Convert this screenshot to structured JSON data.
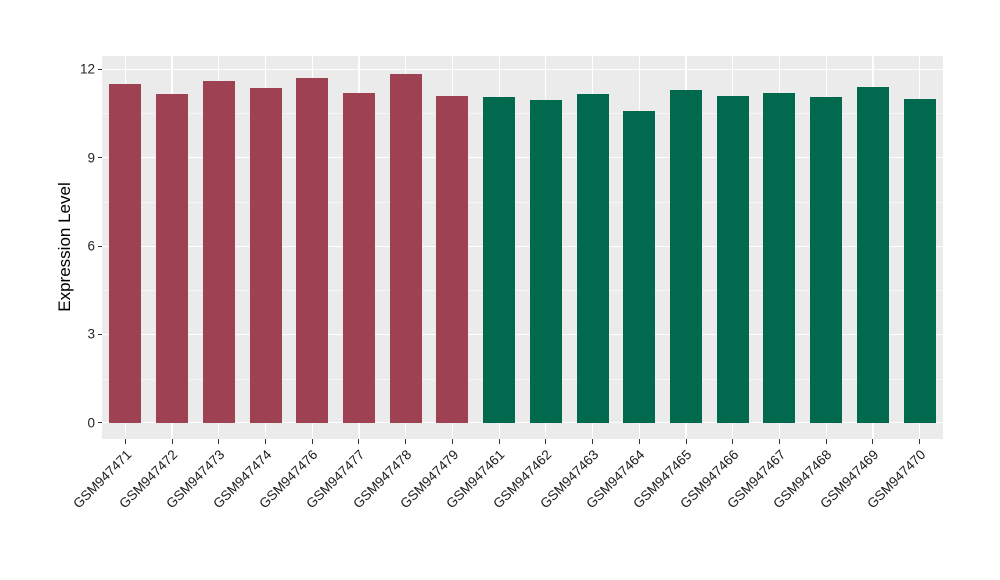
{
  "chart_data": {
    "type": "bar",
    "title": "",
    "xlabel": "",
    "ylabel": "Expression Level",
    "panel_bg": "#EBEBEB",
    "grid_color": "#FFFFFF",
    "grid": true,
    "legend": "none",
    "ylim": [
      -0.55,
      12.45
    ],
    "yticks": [
      {
        "value": 0,
        "label": "0"
      },
      {
        "value": 3,
        "label": "3"
      },
      {
        "value": 6,
        "label": "6"
      },
      {
        "value": 9,
        "label": "9"
      },
      {
        "value": 12,
        "label": "12"
      }
    ],
    "yticks_minor": [
      1.5,
      4.5,
      7.5,
      10.5
    ],
    "group_colors": {
      "group1": "#9E4253",
      "group2": "#01694D"
    },
    "bars": [
      {
        "label": "GSM947471",
        "value": 11.5,
        "group": "group1"
      },
      {
        "label": "GSM947472",
        "value": 11.15,
        "group": "group1"
      },
      {
        "label": "GSM947473",
        "value": 11.6,
        "group": "group1"
      },
      {
        "label": "GSM947474",
        "value": 11.35,
        "group": "group1"
      },
      {
        "label": "GSM947476",
        "value": 11.7,
        "group": "group1"
      },
      {
        "label": "GSM947477",
        "value": 11.2,
        "group": "group1"
      },
      {
        "label": "GSM947478",
        "value": 11.85,
        "group": "group1"
      },
      {
        "label": "GSM947479",
        "value": 11.1,
        "group": "group1"
      },
      {
        "label": "GSM947461",
        "value": 11.05,
        "group": "group2"
      },
      {
        "label": "GSM947462",
        "value": 10.95,
        "group": "group2"
      },
      {
        "label": "GSM947463",
        "value": 11.15,
        "group": "group2"
      },
      {
        "label": "GSM947464",
        "value": 10.6,
        "group": "group2"
      },
      {
        "label": "GSM947465",
        "value": 11.3,
        "group": "group2"
      },
      {
        "label": "GSM947466",
        "value": 11.1,
        "group": "group2"
      },
      {
        "label": "GSM947467",
        "value": 11.2,
        "group": "group2"
      },
      {
        "label": "GSM947468",
        "value": 11.05,
        "group": "group2"
      },
      {
        "label": "GSM947469",
        "value": 11.4,
        "group": "group2"
      },
      {
        "label": "GSM947470",
        "value": 11.0,
        "group": "group2"
      }
    ]
  }
}
